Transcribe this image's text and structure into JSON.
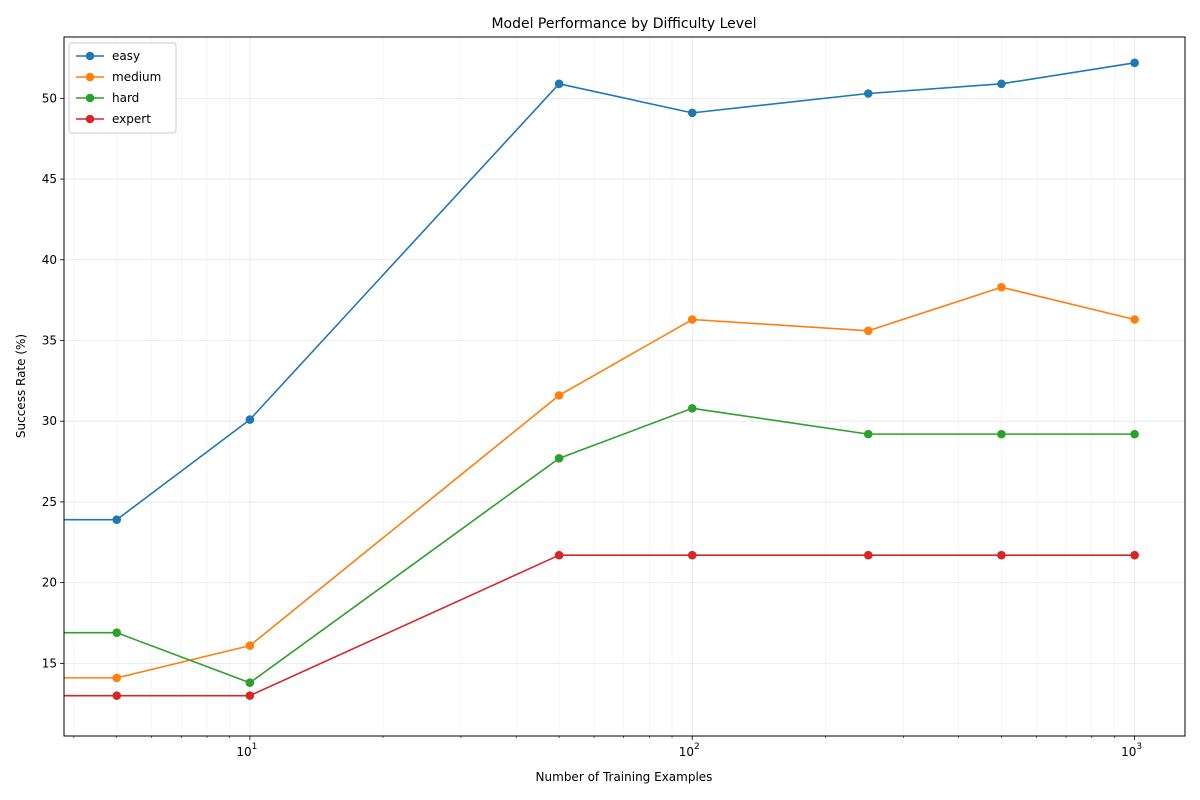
{
  "chart_data": {
    "type": "line",
    "title": "Model Performance by Difficulty Level",
    "xlabel": "Number of Training Examples",
    "ylabel": "Success Rate (%)",
    "x_scale": "log",
    "xlim": [
      3.8,
      1300
    ],
    "ylim": [
      10.5,
      53.8
    ],
    "x": [
      1,
      5,
      10,
      50,
      100,
      250,
      500,
      1000
    ],
    "x_ticks": [
      10,
      100,
      1000
    ],
    "x_tick_labels": [
      {
        "base": "10",
        "exp": "1"
      },
      {
        "base": "10",
        "exp": "2"
      },
      {
        "base": "10",
        "exp": "3"
      }
    ],
    "y_ticks": [
      15,
      20,
      25,
      30,
      35,
      40,
      45,
      50
    ],
    "y_tick_labels": [
      "15",
      "20",
      "25",
      "30",
      "35",
      "40",
      "45",
      "50"
    ],
    "grid": true,
    "legend_position": "top-left",
    "series": [
      {
        "name": "easy",
        "color": "#1f77b4",
        "values": [
          23.9,
          23.9,
          30.1,
          50.9,
          49.1,
          50.3,
          50.9,
          52.2
        ]
      },
      {
        "name": "medium",
        "color": "#ff7f0e",
        "values": [
          14.1,
          14.1,
          16.1,
          31.6,
          36.3,
          35.6,
          38.3,
          36.3
        ]
      },
      {
        "name": "hard",
        "color": "#2ca02c",
        "values": [
          16.9,
          16.9,
          13.8,
          27.7,
          30.8,
          29.2,
          29.2,
          29.2
        ]
      },
      {
        "name": "expert",
        "color": "#d62728",
        "values": [
          13.0,
          13.0,
          13.0,
          21.7,
          21.7,
          21.7,
          21.7,
          21.7
        ]
      }
    ]
  }
}
